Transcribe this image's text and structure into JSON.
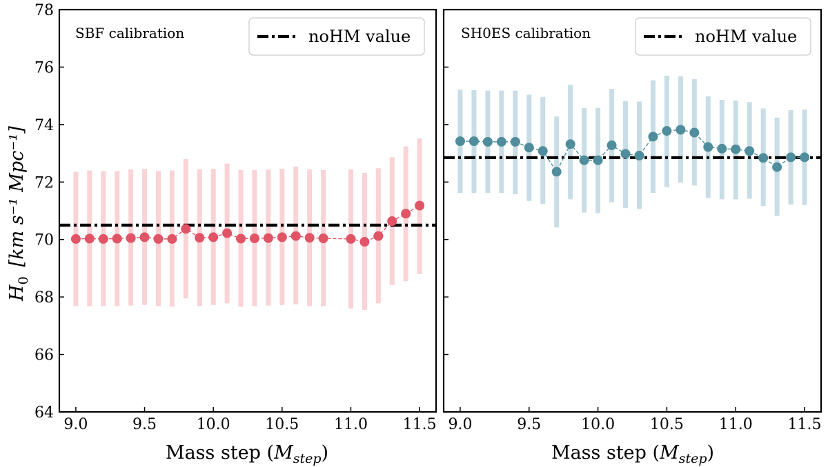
{
  "chart_data": [
    {
      "type": "scatter",
      "panel": "left",
      "annotation": "SBF calibration",
      "xlabel": "Mass step (",
      "xlabel_math": "M",
      "xlabel_sub": "step",
      "xlabel_close": ")",
      "ylabel": "H",
      "ylabel_sub": "0",
      "ylabel_units": "[km s⁻¹ Mpc⁻¹]",
      "xlim": [
        8.88,
        11.62
      ],
      "ylim": [
        64,
        78
      ],
      "xticks": [
        9.0,
        9.5,
        10.0,
        10.5,
        11.0,
        11.5
      ],
      "xtick_labels": [
        "9.0",
        "9.5",
        "10.0",
        "10.5",
        "11.0",
        "11.5"
      ],
      "yticks": [
        64,
        66,
        68,
        70,
        72,
        74,
        76,
        78
      ],
      "ytick_labels": [
        "64",
        "66",
        "68",
        "70",
        "72",
        "74",
        "76",
        "78"
      ],
      "reference_line": {
        "value": 70.5,
        "label": "noHM value",
        "style": "dashdot"
      },
      "legend": {
        "position": "top-right",
        "label": "noHM value"
      },
      "color": "#e05465",
      "errcolor": "#f9d3d6",
      "series": [
        {
          "name": "H0",
          "x": [
            9.0,
            9.1,
            9.2,
            9.3,
            9.4,
            9.5,
            9.6,
            9.7,
            9.8,
            9.9,
            10.0,
            10.1,
            10.2,
            10.3,
            10.4,
            10.5,
            10.6,
            10.7,
            10.8,
            11.0,
            11.1,
            11.2,
            11.3,
            11.4,
            11.5
          ],
          "y": [
            70.02,
            70.03,
            70.02,
            70.03,
            70.05,
            70.08,
            70.02,
            70.02,
            70.37,
            70.06,
            70.08,
            70.22,
            70.03,
            70.04,
            70.05,
            70.08,
            70.12,
            70.06,
            70.04,
            70.02,
            69.92,
            70.12,
            70.64,
            70.9,
            71.18
          ],
          "err_low": [
            67.68,
            67.68,
            67.68,
            67.68,
            67.7,
            67.72,
            67.68,
            67.66,
            67.95,
            67.68,
            67.72,
            67.78,
            67.66,
            67.68,
            67.7,
            67.72,
            67.74,
            67.68,
            67.68,
            67.6,
            67.55,
            67.78,
            68.42,
            68.55,
            68.8
          ],
          "err_high": [
            72.36,
            72.4,
            72.38,
            72.38,
            72.44,
            72.46,
            72.38,
            72.4,
            72.8,
            72.44,
            72.46,
            72.64,
            72.42,
            72.42,
            72.44,
            72.46,
            72.54,
            72.44,
            72.42,
            72.44,
            72.32,
            72.48,
            72.86,
            73.24,
            73.52
          ]
        }
      ]
    },
    {
      "type": "scatter",
      "panel": "right",
      "annotation": "SH0ES calibration",
      "xlabel": "Mass step (",
      "xlabel_math": "M",
      "xlabel_sub": "step",
      "xlabel_close": ")",
      "xlim": [
        8.88,
        11.62
      ],
      "ylim": [
        64,
        78
      ],
      "xticks": [
        9.0,
        9.5,
        10.0,
        10.5,
        11.0,
        11.5
      ],
      "xtick_labels": [
        "9.0",
        "9.5",
        "10.0",
        "10.5",
        "11.0",
        "11.5"
      ],
      "reference_line": {
        "value": 72.85,
        "label": "noHM value",
        "style": "dashdot"
      },
      "legend": {
        "position": "top-right",
        "label": "noHM value"
      },
      "color": "#4f8d9d",
      "errcolor": "#c8dde5",
      "series": [
        {
          "name": "H0",
          "x": [
            9.0,
            9.1,
            9.2,
            9.3,
            9.4,
            9.5,
            9.6,
            9.7,
            9.8,
            9.9,
            10.0,
            10.1,
            10.2,
            10.3,
            10.4,
            10.5,
            10.6,
            10.7,
            10.8,
            10.9,
            11.0,
            11.1,
            11.2,
            11.3,
            11.4,
            11.5
          ],
          "y": [
            73.42,
            73.42,
            73.4,
            73.4,
            73.4,
            73.2,
            73.08,
            72.36,
            73.32,
            72.76,
            72.76,
            73.28,
            72.98,
            72.92,
            73.58,
            73.78,
            73.82,
            73.72,
            73.22,
            73.16,
            73.14,
            73.08,
            72.84,
            72.52,
            72.86,
            72.86
          ],
          "err_low": [
            71.62,
            71.62,
            71.62,
            71.62,
            71.58,
            71.34,
            71.24,
            70.42,
            71.4,
            70.94,
            70.92,
            71.3,
            71.1,
            71.06,
            71.62,
            71.82,
            71.98,
            71.88,
            71.44,
            71.4,
            71.4,
            71.42,
            71.16,
            70.82,
            71.22,
            71.2
          ],
          "err_high": [
            75.22,
            75.2,
            75.18,
            75.18,
            75.18,
            75.04,
            74.96,
            74.28,
            75.38,
            74.58,
            74.58,
            75.24,
            74.82,
            74.8,
            75.54,
            75.7,
            75.68,
            75.58,
            74.98,
            74.86,
            74.84,
            74.78,
            74.56,
            74.24,
            74.5,
            74.52
          ]
        }
      ]
    }
  ]
}
